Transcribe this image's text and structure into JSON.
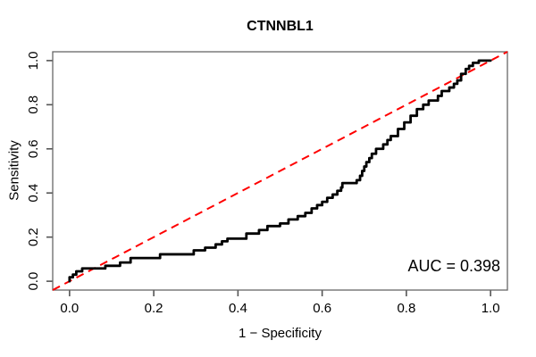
{
  "chart_data": {
    "type": "line",
    "subtype": "roc-step",
    "title": "CTNNBL1",
    "xlabel": "1 − Specificity",
    "ylabel": "Sensitivity",
    "annotation": "AUC = 0.398",
    "auc_value": 0.398,
    "xlim": [
      0,
      1
    ],
    "ylim": [
      0,
      1
    ],
    "axis_extension": 0.04,
    "x_ticks": [
      0.0,
      0.2,
      0.4,
      0.6,
      0.8,
      1.0
    ],
    "y_ticks": [
      0.0,
      0.2,
      0.4,
      0.6,
      0.8,
      1.0
    ],
    "x_tick_labels": [
      "0.0",
      "0.2",
      "0.4",
      "0.6",
      "0.8",
      "1.0"
    ],
    "y_tick_labels": [
      "0.0",
      "0.2",
      "0.4",
      "0.6",
      "0.8",
      "1.0"
    ],
    "grid": false,
    "legend": null,
    "box": true,
    "colors": {
      "roc_curve": "#000000",
      "diagonal": "#ff0000",
      "box": "#666666",
      "tick": "#555555",
      "text": "#000000",
      "background": "#ffffff"
    },
    "series": [
      {
        "name": "ROC curve (CTNNBL1)",
        "draw": "step",
        "color": "#000000",
        "line_width": 2.8,
        "points": [
          [
            0.0,
            0.0
          ],
          [
            0.0,
            0.018
          ],
          [
            0.008,
            0.03
          ],
          [
            0.016,
            0.045
          ],
          [
            0.03,
            0.058
          ],
          [
            0.085,
            0.07
          ],
          [
            0.12,
            0.085
          ],
          [
            0.145,
            0.105
          ],
          [
            0.215,
            0.122
          ],
          [
            0.295,
            0.14
          ],
          [
            0.322,
            0.152
          ],
          [
            0.347,
            0.167
          ],
          [
            0.362,
            0.181
          ],
          [
            0.375,
            0.193
          ],
          [
            0.42,
            0.216
          ],
          [
            0.45,
            0.232
          ],
          [
            0.47,
            0.25
          ],
          [
            0.5,
            0.262
          ],
          [
            0.52,
            0.28
          ],
          [
            0.542,
            0.295
          ],
          [
            0.56,
            0.31
          ],
          [
            0.575,
            0.33
          ],
          [
            0.588,
            0.345
          ],
          [
            0.6,
            0.36
          ],
          [
            0.612,
            0.378
          ],
          [
            0.625,
            0.393
          ],
          [
            0.636,
            0.41
          ],
          [
            0.645,
            0.425
          ],
          [
            0.648,
            0.445
          ],
          [
            0.682,
            0.458
          ],
          [
            0.69,
            0.478
          ],
          [
            0.695,
            0.5
          ],
          [
            0.7,
            0.52
          ],
          [
            0.705,
            0.54
          ],
          [
            0.712,
            0.558
          ],
          [
            0.718,
            0.578
          ],
          [
            0.728,
            0.6
          ],
          [
            0.745,
            0.62
          ],
          [
            0.755,
            0.64
          ],
          [
            0.763,
            0.658
          ],
          [
            0.78,
            0.69
          ],
          [
            0.795,
            0.72
          ],
          [
            0.81,
            0.75
          ],
          [
            0.825,
            0.78
          ],
          [
            0.84,
            0.8
          ],
          [
            0.853,
            0.819
          ],
          [
            0.875,
            0.84
          ],
          [
            0.884,
            0.862
          ],
          [
            0.902,
            0.878
          ],
          [
            0.913,
            0.895
          ],
          [
            0.921,
            0.91
          ],
          [
            0.93,
            0.94
          ],
          [
            0.941,
            0.962
          ],
          [
            0.949,
            0.976
          ],
          [
            0.958,
            0.99
          ],
          [
            0.972,
            1.0
          ],
          [
            1.0,
            1.0
          ]
        ]
      },
      {
        "name": "Chance diagonal",
        "draw": "line",
        "color": "#ff0000",
        "line_width": 2,
        "dash": [
          9,
          6
        ],
        "points": [
          [
            0,
            0
          ],
          [
            1,
            1
          ]
        ],
        "spans_full_box": true
      }
    ]
  }
}
